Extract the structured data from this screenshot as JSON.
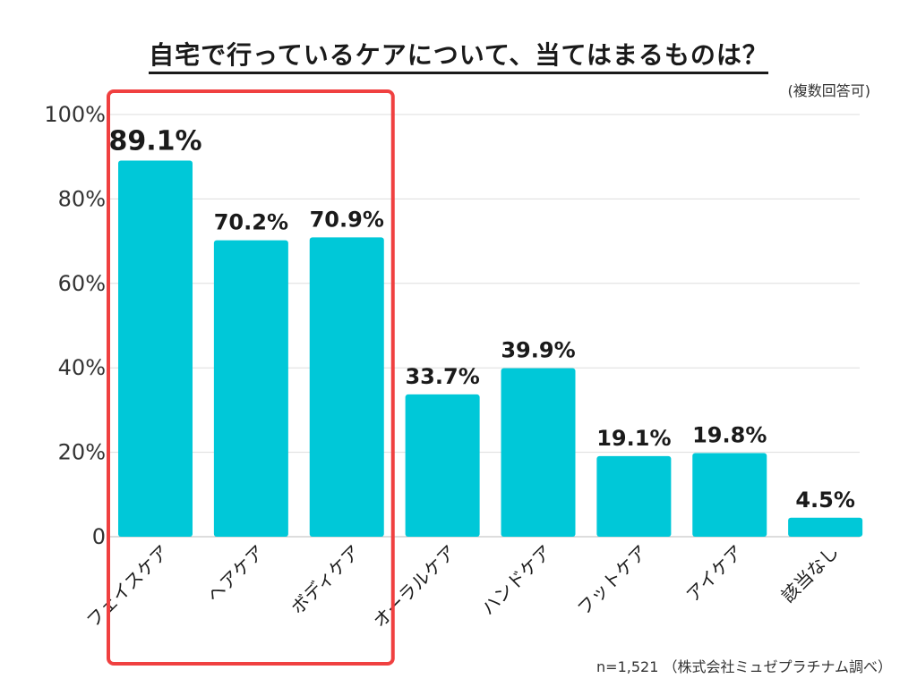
{
  "chart_data": {
    "type": "bar",
    "title": "自宅で行っているケアについて、当てはまるものは？",
    "note": "(複数回答可)",
    "source": "n=1,521 （株式会社ミュゼプラチナム調べ）",
    "categories": [
      "フェイスケア",
      "ヘアケア",
      "ボディケア",
      "オーラルケア",
      "ハンドケア",
      "フットケア",
      "アイケア",
      "該当なし"
    ],
    "values": [
      89.1,
      70.2,
      70.9,
      33.7,
      39.9,
      19.1,
      19.8,
      4.5
    ],
    "value_labels": [
      "89.1%",
      "70.2%",
      "70.9%",
      "33.7%",
      "39.9%",
      "19.1%",
      "19.8%",
      "4.5%"
    ],
    "ylim": [
      0,
      100
    ],
    "yticks": [
      0,
      20,
      40,
      60,
      80,
      100
    ],
    "ytick_labels": [
      "0",
      "20%",
      "40%",
      "60%",
      "80%",
      "100%"
    ],
    "grid": true,
    "highlight_categories": [
      "フェイスケア",
      "ヘアケア",
      "ボディケア"
    ],
    "bar_color": "#00c8d8",
    "highlight_color": "#f04040"
  }
}
